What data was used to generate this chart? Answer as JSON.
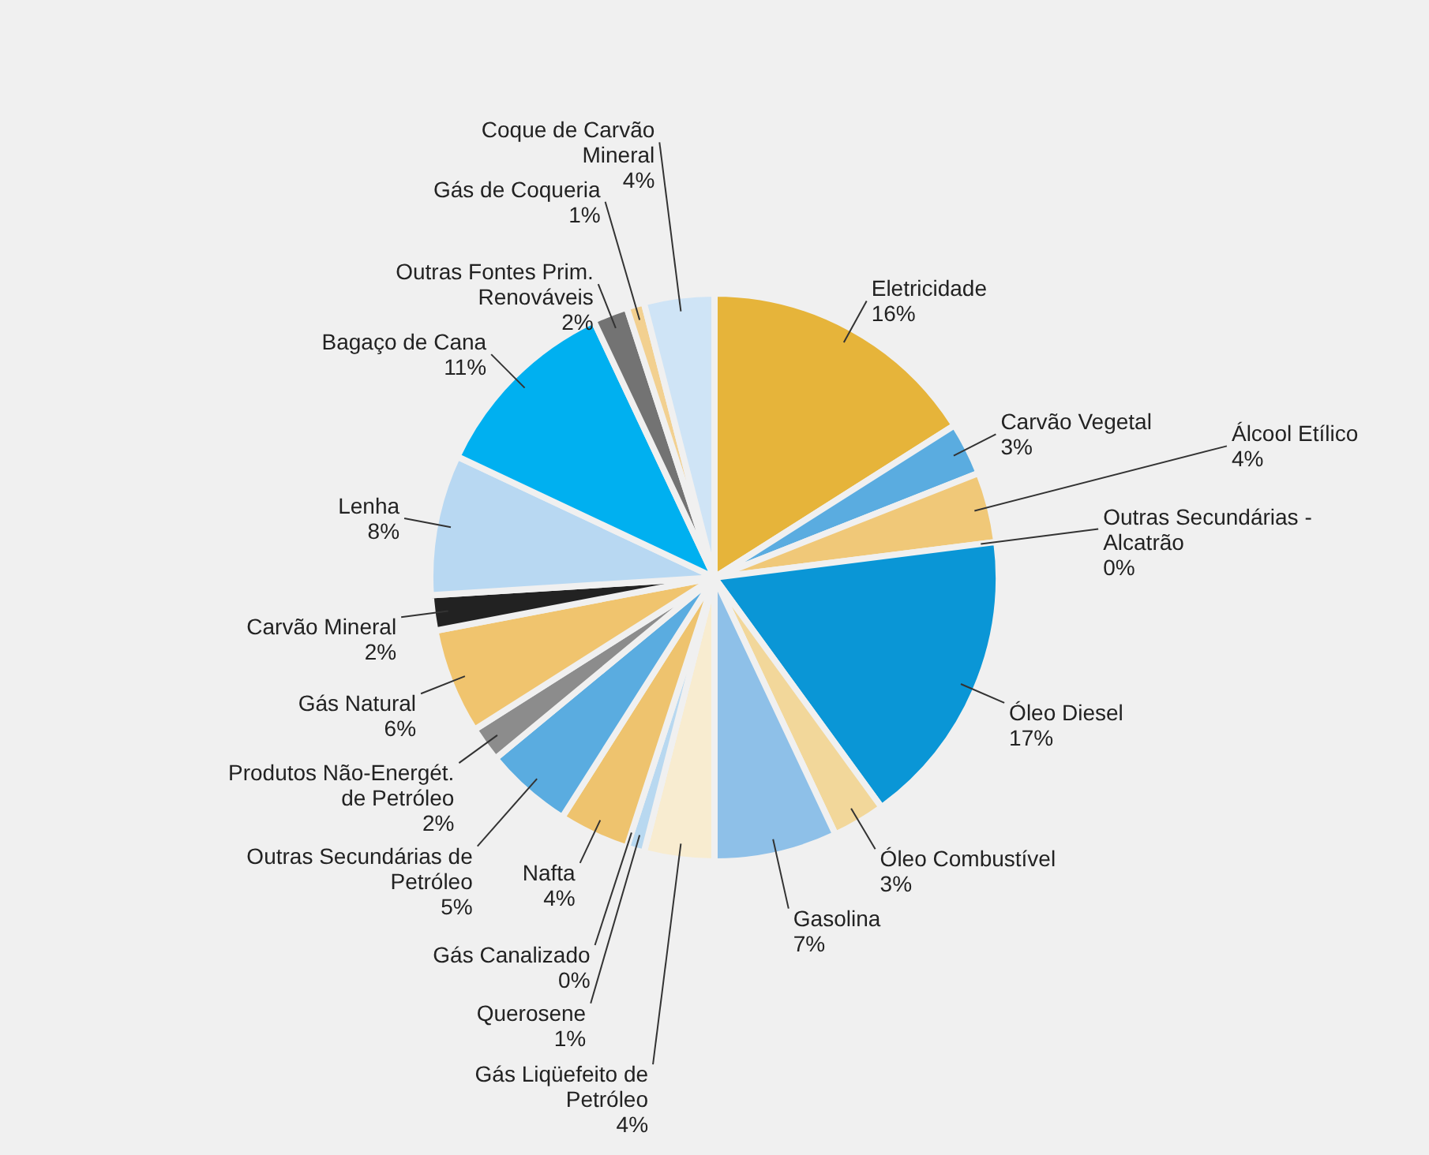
{
  "chart_data": {
    "type": "pie",
    "legend": false,
    "categories": [
      "Eletricidade",
      "Carvão Vegetal",
      "Álcool Etílico",
      "Outras Secundárias - Alcatrão",
      "Óleo Diesel",
      "Óleo Combustível",
      "Gasolina",
      "Gás Liqüefeito de Petróleo",
      "Querosene",
      "Gás Canalizado",
      "Nafta",
      "Outras Secundárias de Petróleo",
      "Produtos Não-Energét. de Petróleo",
      "Gás Natural",
      "Carvão Mineral",
      "Lenha",
      "Bagaço de Cana",
      "Outras Fontes Prim. Renováveis",
      "Gás de Coqueria",
      "Coque de Carvão Mineral"
    ],
    "values": [
      16,
      3,
      4,
      0,
      17,
      3,
      7,
      4,
      1,
      0,
      4,
      5,
      2,
      6,
      2,
      8,
      11,
      2,
      1,
      4
    ],
    "value_labels": [
      "16%",
      "3%",
      "4%",
      "0%",
      "17%",
      "3%",
      "7%",
      "4%",
      "1%",
      "0%",
      "4%",
      "5%",
      "2%",
      "6%",
      "2%",
      "8%",
      "11%",
      "2%",
      "1%",
      "4%"
    ],
    "colors": [
      "#e6b43a",
      "#5aace0",
      "#f0c878",
      "#c8dff2",
      "#0a96d6",
      "#f2d79a",
      "#8ec0e8",
      "#f8ecd0",
      "#b8d8f0",
      "#dcdcdc",
      "#eec36e",
      "#5aace0",
      "#8c8c8c",
      "#f0c46e",
      "#222222",
      "#b8d8f2",
      "#00b0f0",
      "#737373",
      "#f2d090",
      "#cfe4f6"
    ]
  }
}
